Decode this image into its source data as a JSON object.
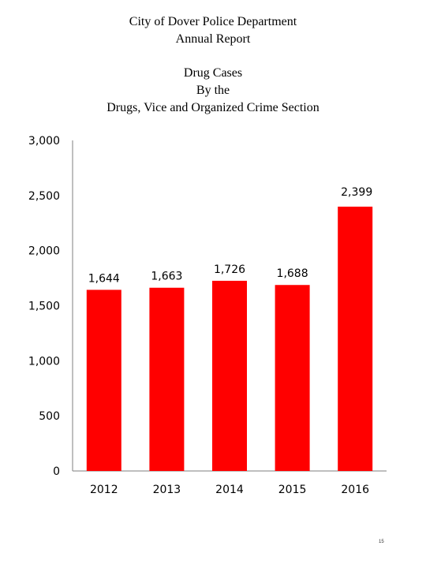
{
  "report": {
    "line1": "City of Dover Police Department",
    "line2": "Annual Report"
  },
  "page_number": "15",
  "chart_data": {
    "type": "bar",
    "title": "Drug Cases\nBy the\nDrugs, Vice and Organized Crime Section",
    "title_lines": [
      "Drug Cases",
      "By the",
      "Drugs, Vice and Organized Crime Section"
    ],
    "categories": [
      "2012",
      "2013",
      "2014",
      "2015",
      "2016"
    ],
    "values": [
      1644,
      1663,
      1726,
      1688,
      2399
    ],
    "data_labels": [
      "1,644",
      "1,663",
      "1,726",
      "1,688",
      "2,399"
    ],
    "ylim": [
      0,
      3000
    ],
    "yticks": [
      0,
      500,
      1000,
      1500,
      2000,
      2500,
      3000
    ],
    "ytick_labels": [
      "0",
      "500",
      "1,000",
      "1,500",
      "2,000",
      "2,500",
      "3,000"
    ],
    "xlabel": "",
    "ylabel": "",
    "grid": false,
    "legend": "none",
    "bar_color": "#ff0000",
    "axis_color": "#7f7f7f"
  }
}
